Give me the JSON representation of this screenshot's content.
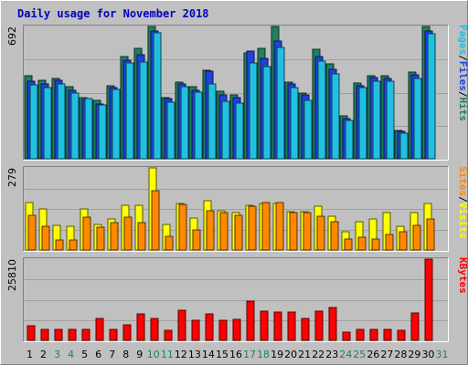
{
  "colors": {
    "background": "#c0c0c0",
    "frame_light": "#ffffff",
    "frame_dark": "#808080",
    "title": "#0000c0",
    "pages": "#20c0e0",
    "files": "#2040e0",
    "hits": "#208060",
    "sites": "#ff8800",
    "visits": "#ffff00",
    "kbytes": "#ff0000",
    "weekend_label": "#208060",
    "weekday_label": "#000000"
  },
  "chart_data": {
    "type": "bar",
    "title": "Daily usage for November 2018",
    "categories": [
      "1",
      "2",
      "3",
      "4",
      "5",
      "6",
      "7",
      "8",
      "9",
      "10",
      "11",
      "12",
      "13",
      "14",
      "15",
      "16",
      "17",
      "18",
      "19",
      "20",
      "21",
      "22",
      "23",
      "24",
      "25",
      "26",
      "27",
      "28",
      "29",
      "30",
      "31"
    ],
    "weekend_days": [
      "3",
      "4",
      "10",
      "11",
      "17",
      "18",
      "24",
      "25",
      "31"
    ],
    "panels": [
      {
        "name": "top",
        "max_label": "692",
        "ylim": [
          0,
          692
        ],
        "legend": [
          "Pages",
          "/",
          "Files",
          "/",
          "Hits"
        ],
        "series": [
          {
            "name": "Hits",
            "color_key": "hits",
            "values": [
              435,
              412,
              422,
              375,
              319,
              305,
              381,
              534,
              579,
              692,
              321,
              402,
              376,
              463,
              354,
              334,
              555,
              577,
              692,
              401,
              344,
              571,
              497,
              225,
              396,
              434,
              434,
              149,
              451,
              692,
              0
            ]
          },
          {
            "name": "Files",
            "color_key": "files",
            "values": [
              407,
              389,
              412,
              359,
              310,
              285,
              374,
              514,
              544,
              666,
              316,
              389,
              357,
              459,
              332,
              321,
              565,
              526,
              614,
              390,
              333,
              534,
              469,
              208,
              381,
              427,
              420,
              141,
              437,
              666,
              0
            ]
          },
          {
            "name": "Pages",
            "color_key": "pages",
            "values": [
              386,
              370,
              389,
              344,
              317,
              281,
              362,
              503,
              508,
              660,
              294,
              375,
              347,
              391,
              302,
              289,
              502,
              480,
              582,
              370,
              305,
              513,
              442,
              199,
              372,
              408,
              406,
              136,
              420,
              652,
              0
            ]
          }
        ]
      },
      {
        "name": "middle",
        "max_label": "279",
        "ylim": [
          0,
          279
        ],
        "legend": [
          "Sites",
          "/",
          "Visits"
        ],
        "series": [
          {
            "name": "Visits",
            "color_key": "visits",
            "values": [
              162,
              141,
              85,
              82,
              140,
              88,
              105,
              152,
              151,
              279,
              86,
              159,
              107,
              167,
              134,
              127,
              152,
              157,
              157,
              130,
              129,
              150,
              114,
              61,
              97,
              104,
              128,
              82,
              126,
              157,
              0
            ]
          },
          {
            "name": "Sites",
            "color_key": "sites",
            "values": [
              117,
              82,
              33,
              33,
              112,
              78,
              93,
              112,
              93,
              202,
              46,
              154,
              68,
              133,
              127,
              117,
              150,
              161,
              160,
              126,
              127,
              116,
              96,
              37,
              43,
              37,
              52,
              62,
              83,
              105,
              0
            ]
          }
        ]
      },
      {
        "name": "bottom",
        "max_label": "25810",
        "ylim": [
          0,
          25810
        ],
        "legend": [
          "KBytes"
        ],
        "series": [
          {
            "name": "KBytes",
            "color_key": "kbytes",
            "values": [
              4600,
              3350,
              3350,
              3350,
              3350,
              7000,
              3600,
              5000,
              8500,
              7000,
              3200,
              9500,
              6300,
              8500,
              6300,
              6800,
              12500,
              9300,
              9000,
              9000,
              6900,
              9300,
              10400,
              2600,
              3600,
              3600,
              3600,
              3200,
              8600,
              25810,
              0
            ]
          }
        ]
      }
    ]
  }
}
